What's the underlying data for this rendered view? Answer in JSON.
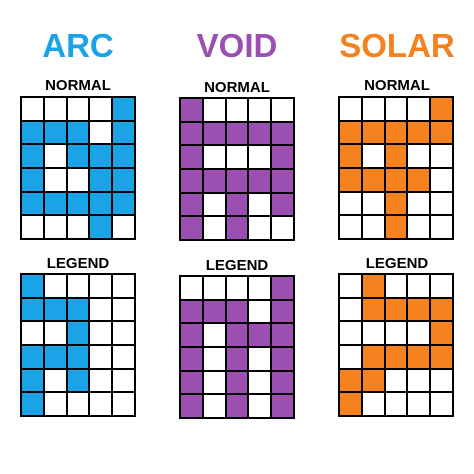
{
  "colors": {
    "arc": "#1aa3e6",
    "void": "#9b4fb0",
    "solar": "#f5821f",
    "empty": "#ffffff"
  },
  "columns": [
    {
      "key": "arc",
      "title": "ARC",
      "panels": [
        {
          "label": "NORMAL",
          "rows": [
            "00001",
            "11101",
            "10111",
            "10011",
            "11111",
            "00010"
          ]
        },
        {
          "label": "LEGEND",
          "rows": [
            "10000",
            "11100",
            "00100",
            "11100",
            "10100",
            "10000"
          ]
        }
      ]
    },
    {
      "key": "void",
      "title": "VOID",
      "panels": [
        {
          "label": "NORMAL",
          "rows": [
            "10000",
            "11111",
            "10001",
            "11111",
            "10101",
            "10100"
          ]
        },
        {
          "label": "LEGEND",
          "rows": [
            "00001",
            "11101",
            "10111",
            "10101",
            "10101",
            "10101"
          ]
        }
      ]
    },
    {
      "key": "solar",
      "title": "SOLAR",
      "panels": [
        {
          "label": "NORMAL",
          "rows": [
            "00001",
            "11111",
            "10100",
            "11110",
            "00100",
            "00100"
          ]
        },
        {
          "label": "LEGEND",
          "rows": [
            "01000",
            "01111",
            "00001",
            "01111",
            "11000",
            "10000"
          ]
        }
      ]
    }
  ]
}
